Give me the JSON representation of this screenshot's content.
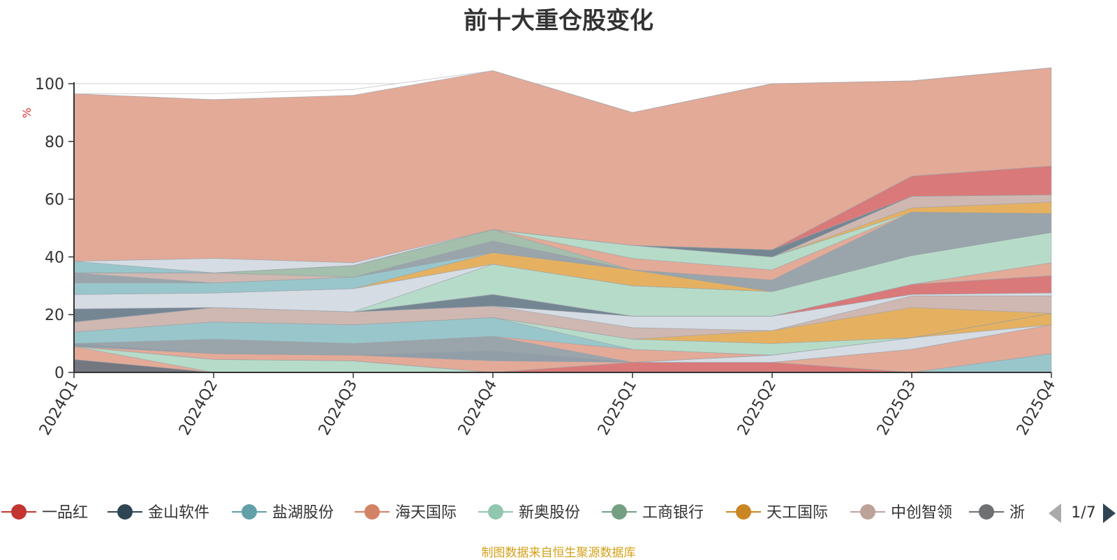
{
  "chart_data": {
    "type": "area",
    "subtype": "stacked-100-percent",
    "title": "前十大重仓股变化",
    "ylabel": "%",
    "xlabel": "",
    "ylim": [
      0,
      100
    ],
    "y_ticks": [
      0,
      20,
      40,
      60,
      80,
      100
    ],
    "categories": [
      "2024Q1",
      "2024Q2",
      "2024Q3",
      "2024Q4",
      "2025Q1",
      "2025Q2",
      "2025Q3",
      "2025Q4"
    ],
    "grid": true,
    "legend_position": "bottom",
    "legend_page": "1/7",
    "series": [
      {
        "name": "浙",
        "color": "#6e7079",
        "values": [
          4.5,
          0.0,
          0.0,
          0.0,
          0.0,
          0.0,
          0.0,
          0.0
        ]
      },
      {
        "name": "海天国际",
        "color": "#e1a592",
        "values": [
          4.5,
          0.0,
          0.0,
          0.0,
          0.0,
          0.0,
          0.0,
          0.0
        ]
      },
      {
        "name": "新奥股份",
        "color": "#b3d9c6",
        "values": [
          0.0,
          4.5,
          4.0,
          0.0,
          0.0,
          0.0,
          0.0,
          0.0
        ]
      },
      {
        "name": "盐湖股份",
        "color": "#93c3c8",
        "values": [
          0.0,
          0.0,
          0.0,
          0.0,
          0.0,
          0.0,
          0.0,
          6.5
        ]
      },
      {
        "name": "一品红",
        "color": "#d87272",
        "values": [
          0.0,
          0.0,
          0.0,
          0.0,
          3.5,
          3.5,
          0.0,
          0.0
        ]
      },
      {
        "name": "中创智领",
        "color": "#e1a592",
        "values": [
          0.0,
          2.0,
          2.0,
          4.0,
          0.0,
          0.0,
          8.0,
          10.0
        ]
      },
      {
        "name": "金山软件",
        "color": "#8b99a3",
        "values": [
          1.0,
          0.0,
          0.0,
          3.5,
          0.0,
          0.0,
          0.0,
          0.0
        ]
      },
      {
        "name": "工商银行",
        "color": "#d3dae3",
        "values": [
          0.0,
          0.0,
          0.0,
          0.0,
          0.0,
          2.5,
          4.0,
          0.0
        ]
      },
      {
        "name": "天工国际",
        "color": "#e4ad58",
        "values": [
          0.0,
          0.0,
          0.0,
          0.0,
          0.0,
          0.0,
          0.0,
          4.0
        ]
      },
      {
        "name": "浙",
        "color": "#95a0a7",
        "values": [
          0.0,
          5.0,
          4.0,
          5.0,
          0.0,
          0.0,
          0.0,
          0.0
        ]
      },
      {
        "name": "海天国际",
        "color": "#e1a592",
        "values": [
          0.0,
          0.0,
          0.0,
          0.0,
          4.5,
          0.0,
          0.0,
          0.0
        ]
      },
      {
        "name": "盐湖股份",
        "color": "#93c3c8",
        "values": [
          4.0,
          6.0,
          6.5,
          6.5,
          0.0,
          0.0,
          0.0,
          0.0
        ]
      },
      {
        "name": "新奥股份",
        "color": "#b3d9c6",
        "values": [
          0.0,
          0.0,
          0.0,
          0.0,
          3.5,
          4.0,
          0.0,
          0.0
        ]
      },
      {
        "name": "天工国际",
        "color": "#e4ad58",
        "values": [
          0.0,
          0.0,
          0.0,
          0.0,
          0.0,
          4.5,
          10.5,
          0.0
        ]
      },
      {
        "name": "中创智领",
        "color": "#ccb4ae",
        "values": [
          3.5,
          5.0,
          4.5,
          4.0,
          4.0,
          0.0,
          4.0,
          6.0
        ]
      },
      {
        "name": "工商银行",
        "color": "#d3dae3",
        "values": [
          0.0,
          0.0,
          0.0,
          0.0,
          4.0,
          5.0,
          0.5,
          1.0
        ]
      },
      {
        "name": "一品红",
        "color": "#d87272",
        "values": [
          0.0,
          0.0,
          0.0,
          0.0,
          0.0,
          0.0,
          3.5,
          6.0
        ]
      },
      {
        "name": "金山软件",
        "color": "#6e7f8d",
        "values": [
          4.5,
          0.0,
          0.0,
          4.0,
          0.0,
          0.0,
          0.0,
          0.0
        ]
      },
      {
        "name": "海天国际",
        "color": "#e1a592",
        "values": [
          0.0,
          0.0,
          0.0,
          0.0,
          0.0,
          0.0,
          0.0,
          4.5
        ]
      },
      {
        "name": "新奥股份",
        "color": "#b3d9c6",
        "values": [
          0.0,
          0.0,
          0.0,
          10.5,
          10.5,
          8.5,
          10.0,
          10.5
        ]
      },
      {
        "name": "工商银行",
        "color": "#d3dae3",
        "values": [
          5.0,
          5.0,
          8.0,
          0.0,
          0.0,
          0.0,
          0.0,
          0.0
        ]
      },
      {
        "name": "天工国际",
        "color": "#e4ad58",
        "values": [
          0.0,
          0.0,
          0.0,
          4.0,
          5.5,
          0.0,
          0.0,
          0.0
        ]
      },
      {
        "name": "盐湖股份",
        "color": "#93c3c8",
        "values": [
          4.0,
          3.5,
          4.0,
          0.0,
          0.0,
          0.0,
          0.0,
          0.0
        ]
      },
      {
        "name": "浙",
        "color": "#95a0a7",
        "values": [
          3.5,
          0.0,
          0.0,
          4.0,
          0.0,
          4.0,
          15.0,
          6.5
        ]
      },
      {
        "name": "中创智领",
        "color": "#ccb4ae",
        "values": [
          0.0,
          3.5,
          0.0,
          0.0,
          0.0,
          0.0,
          0.0,
          0.0
        ]
      },
      {
        "name": "工商银行",
        "color": "#9fbca8",
        "values": [
          0.0,
          0.0,
          4.0,
          4.0,
          0.0,
          0.0,
          0.0,
          0.0
        ]
      },
      {
        "name": "海天国际",
        "color": "#e1a592",
        "values": [
          0.0,
          0.0,
          0.0,
          0.0,
          4.0,
          3.5,
          0.0,
          0.0
        ]
      },
      {
        "name": "新奥股份",
        "color": "#b3d9c6",
        "values": [
          0.0,
          0.0,
          0.0,
          0.0,
          4.5,
          4.5,
          0.0,
          0.0
        ]
      },
      {
        "name": "天工国际",
        "color": "#e4ad58",
        "values": [
          0.0,
          0.0,
          0.0,
          0.0,
          0.0,
          0.0,
          1.5,
          4.0
        ]
      },
      {
        "name": "中创智领",
        "color": "#ccb4ae",
        "values": [
          0.0,
          0.0,
          0.0,
          0.0,
          0.0,
          0.0,
          4.0,
          2.5
        ]
      },
      {
        "name": "金山软件",
        "color": "#6e7f8d",
        "values": [
          0.0,
          0.0,
          0.0,
          0.0,
          0.0,
          2.5,
          0.0,
          0.0
        ]
      },
      {
        "name": "一品红",
        "color": "#d87272",
        "values": [
          0.0,
          0.0,
          0.0,
          0.0,
          0.0,
          0.0,
          7.0,
          10.0
        ]
      },
      {
        "name": "盐湖股份",
        "color": "#93c3c8",
        "values": [
          4.0,
          0.0,
          0.0,
          0.0,
          0.0,
          0.0,
          0.0,
          0.0
        ]
      },
      {
        "name": "工商银行",
        "color": "#d3dae3",
        "values": [
          0.0,
          5.0,
          1.0,
          0.0,
          0.0,
          0.0,
          0.0,
          0.0
        ]
      },
      {
        "name": "海天国际",
        "color": "#e1a592",
        "values": [
          58.0,
          55.0,
          58.0,
          55.0,
          46.0,
          57.5,
          33.0,
          34.0
        ]
      },
      {
        "name": "浙",
        "color": "#ffffff",
        "values": [
          0.0,
          2.0,
          2.0,
          0.0,
          0.0,
          0.0,
          0.0,
          0.0
        ]
      }
    ]
  },
  "legend": {
    "items": [
      {
        "label": "一品红",
        "color": "#c23531"
      },
      {
        "label": "金山软件",
        "color": "#2f4554"
      },
      {
        "label": "盐湖股份",
        "color": "#61a0a8"
      },
      {
        "label": "海天国际",
        "color": "#d48265"
      },
      {
        "label": "新奥股份",
        "color": "#91c7ae"
      },
      {
        "label": "工商银行",
        "color": "#749f83"
      },
      {
        "label": "天工国际",
        "color": "#ca8622"
      },
      {
        "label": "中创智领",
        "color": "#bda29a"
      },
      {
        "label": "浙",
        "color": "#6e7074"
      }
    ],
    "page_indicator": "1/7"
  },
  "footer": {
    "note": "制图数据来自恒生聚源数据库"
  }
}
